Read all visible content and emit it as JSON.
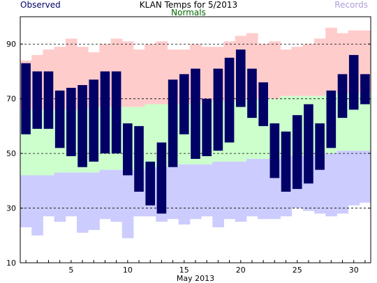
{
  "chart_data": {
    "type": "bar",
    "title": "KLAN Temps for 5/2013",
    "xlabel": "May 2013",
    "ylabel": "",
    "xlim": [
      1,
      31
    ],
    "ylim": [
      10,
      100
    ],
    "yticks": [
      10,
      30,
      50,
      70,
      90
    ],
    "xticks": [
      5,
      10,
      15,
      20,
      25,
      30
    ],
    "grid": "dashed at 30, 50, 70, 90",
    "legend": {
      "observed": "Observed",
      "normals": "Normals",
      "records": "Records"
    },
    "colors": {
      "observed": "#000066",
      "normals_fill": "#ccffcc",
      "normals_text": "#006600",
      "record_high_fill": "#ffcccc",
      "record_low_fill": "#ccccff",
      "records_text": "#b19cd9"
    },
    "days": [
      1,
      2,
      3,
      4,
      5,
      6,
      7,
      8,
      9,
      10,
      11,
      12,
      13,
      14,
      15,
      16,
      17,
      18,
      19,
      20,
      21,
      22,
      23,
      24,
      25,
      26,
      27,
      28,
      29,
      30,
      31
    ],
    "observed_high": [
      83,
      80,
      80,
      73,
      74,
      75,
      77,
      80,
      80,
      61,
      60,
      47,
      54,
      77,
      79,
      81,
      70,
      81,
      85,
      88,
      81,
      76,
      61,
      58,
      64,
      68,
      61,
      73,
      79,
      86,
      79
    ],
    "observed_low": [
      57,
      59,
      59,
      52,
      49,
      45,
      47,
      50,
      50,
      42,
      36,
      31,
      28,
      45,
      57,
      48,
      49,
      51,
      54,
      67,
      63,
      60,
      41,
      36,
      37,
      39,
      44,
      52,
      63,
      66,
      68
    ],
    "normal_high": [
      66,
      66,
      66,
      66,
      66,
      66,
      67,
      67,
      67,
      67,
      67,
      68,
      68,
      68,
      68,
      68,
      69,
      69,
      69,
      69,
      70,
      70,
      70,
      71,
      71,
      71,
      71,
      72,
      72,
      72,
      72
    ],
    "normal_low": [
      42,
      42,
      42,
      43,
      43,
      43,
      43,
      44,
      44,
      44,
      44,
      45,
      45,
      45,
      46,
      46,
      46,
      47,
      47,
      47,
      48,
      48,
      48,
      49,
      49,
      49,
      50,
      50,
      51,
      51,
      51
    ],
    "record_high": [
      84,
      86,
      88,
      89,
      92,
      89,
      87,
      90,
      92,
      91,
      88,
      90,
      91,
      88,
      88,
      90,
      89,
      89,
      91,
      93,
      94,
      90,
      91,
      88,
      89,
      90,
      92,
      96,
      94,
      95,
      95
    ],
    "record_low": [
      23,
      20,
      27,
      25,
      27,
      21,
      22,
      26,
      25,
      19,
      27,
      27,
      25,
      26,
      24,
      26,
      27,
      23,
      26,
      25,
      27,
      26,
      26,
      27,
      30,
      29,
      28,
      27,
      28,
      31,
      32
    ]
  }
}
